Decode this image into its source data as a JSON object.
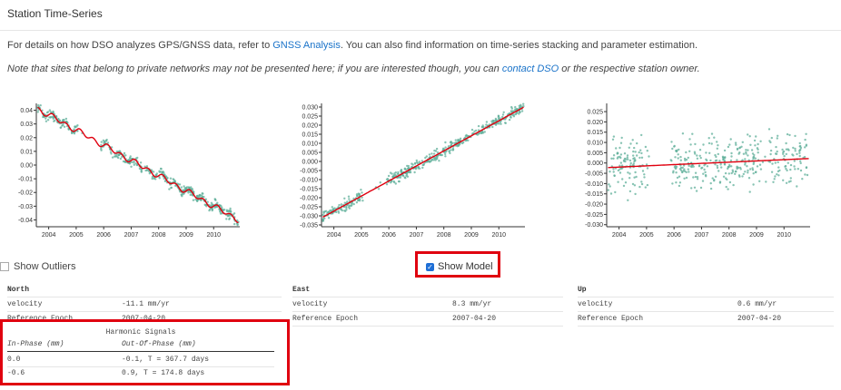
{
  "header": {
    "title": "Station Time-Series"
  },
  "intro": {
    "text_before": "For details on how DSO analyzes GPS/GNSS data, refer to ",
    "link": "GNSS Analysis",
    "text_after": ". You can also find information on time-series stacking and parameter estimation."
  },
  "note": {
    "text_before": "Note that sites that belong to private networks may not be presented here; if you are interested though, you can ",
    "link": "contact DSO",
    "text_after": " or the respective station owner."
  },
  "colors": {
    "points": "#5faf9a",
    "model": "#e0000f",
    "link": "#1a73c9",
    "highlight": "#e0000f"
  },
  "charts": [
    {
      "name": "north",
      "yticks": [
        "0.04",
        "0.03",
        "0.02",
        "0.01",
        "0.00",
        "-0.01",
        "-0.02",
        "-0.03",
        "-0.04"
      ],
      "ymin": -0.045,
      "ymax": 0.045,
      "xticks": [
        "2004",
        "2005",
        "2006",
        "2007",
        "2008",
        "2009",
        "2010"
      ],
      "velocity": -0.0111,
      "harmonic": true
    },
    {
      "name": "east",
      "yticks": [
        "0.030",
        "0.025",
        "0.020",
        "0.015",
        "0.010",
        "0.005",
        "0.000",
        "-0.005",
        "-0.010",
        "-0.015",
        "-0.020",
        "-0.025",
        "-0.030",
        "-0.035"
      ],
      "ymin": -0.036,
      "ymax": 0.032,
      "xticks": [
        "2004",
        "2005",
        "2006",
        "2007",
        "2008",
        "2009",
        "2010"
      ],
      "velocity": 0.0083,
      "harmonic": false
    },
    {
      "name": "up",
      "yticks": [
        "0.025",
        "0.020",
        "0.015",
        "0.010",
        "0.005",
        "0.000",
        "-0.005",
        "-0.010",
        "-0.015",
        "-0.020",
        "-0.025",
        "-0.030"
      ],
      "ymin": -0.031,
      "ymax": 0.029,
      "xticks": [
        "2004",
        "2005",
        "2006",
        "2007",
        "2008",
        "2009",
        "2010"
      ],
      "velocity": 0.0006,
      "harmonic": false
    }
  ],
  "controls": {
    "show_outliers": "Show Outliers",
    "show_model": "Show Model",
    "show_model_checked": true
  },
  "tables": [
    {
      "header": "North",
      "rows": [
        {
          "label": "velocity",
          "value": "-11.1 mm/yr"
        },
        {
          "label": "Reference Epoch",
          "value": "2007-04-20"
        }
      ]
    },
    {
      "header": "East",
      "rows": [
        {
          "label": "velocity",
          "value": "8.3 mm/yr"
        },
        {
          "label": "Reference Epoch",
          "value": "2007-04-20"
        }
      ]
    },
    {
      "header": "Up",
      "rows": [
        {
          "label": "velocity",
          "value": "0.6 mm/yr"
        },
        {
          "label": "Reference Epoch",
          "value": "2007-04-20"
        }
      ]
    }
  ],
  "harmonic": {
    "title": "Harmonic Signals",
    "col_in_phase": "In-Phase (mm)",
    "col_out_phase": "Out-Of-Phase (mm)",
    "rows": [
      {
        "in_phase": "0.0",
        "out_phase": "-0.1, T = 367.7 days"
      },
      {
        "in_phase": "-0.6",
        "out_phase": "0.9, T = 174.8 days"
      }
    ]
  }
}
